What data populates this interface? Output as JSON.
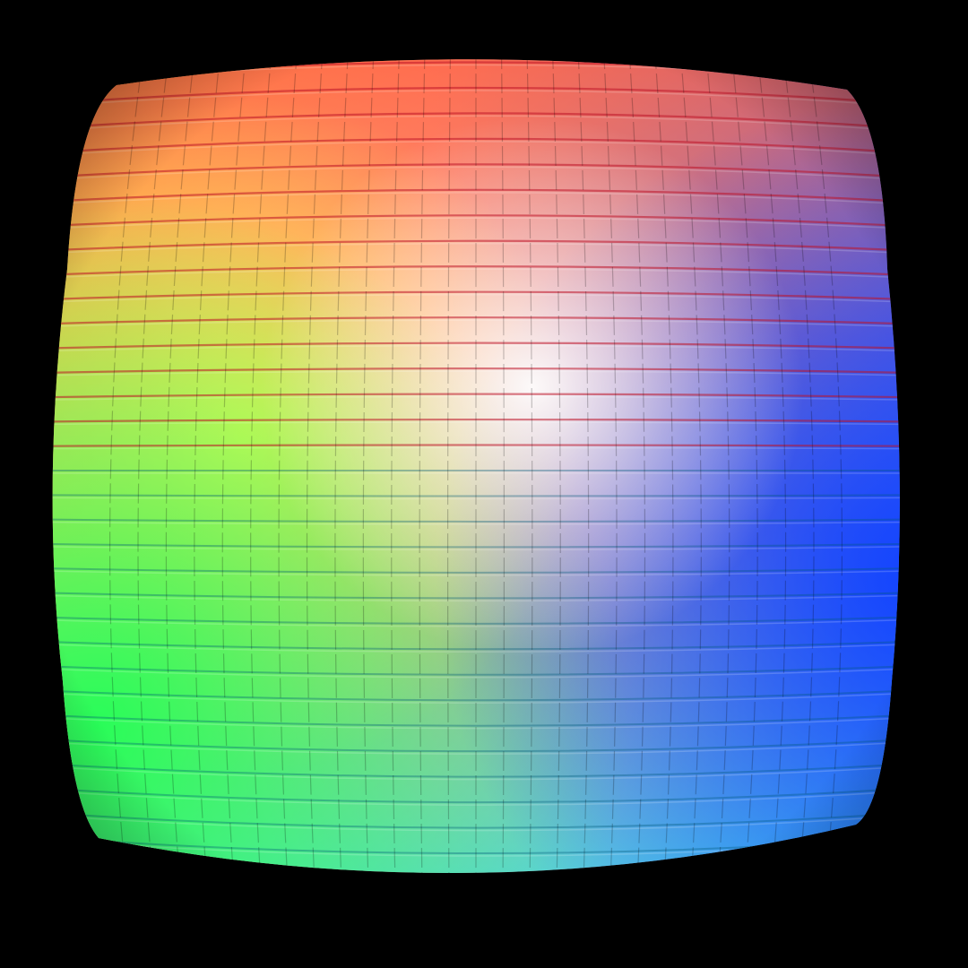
{
  "scene": {
    "background_color": "#000000",
    "subject": "color-tile-sphere",
    "tile_rows": 34,
    "tile_columns": 28,
    "palette": {
      "top_left": "#ff7a2e",
      "top_center": "#ff6a5a",
      "top_right": "#3d4a9c",
      "middle_left": "#ffd52e",
      "center_highlight": "#ffffff",
      "middle_right": "#2b5cff",
      "bottom_left": "#2ee86a",
      "bottom_center": "#33f2ff",
      "bottom_right": "#1a5cff"
    }
  }
}
